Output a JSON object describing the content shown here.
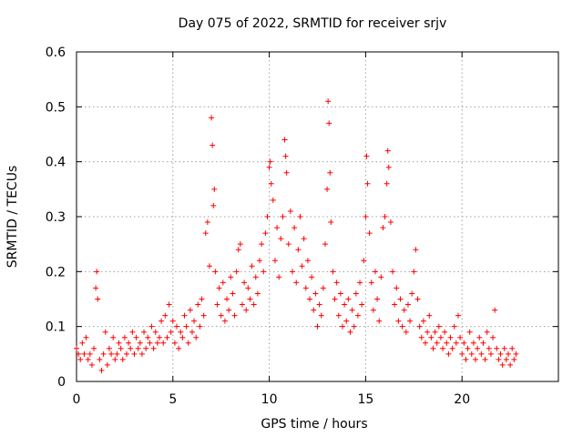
{
  "chart_data": {
    "type": "scatter",
    "title": "Day 075 of 2022, SRMTID for receiver srjv",
    "xlabel": "GPS time / hours",
    "ylabel": "SRMTID / TECUs",
    "xlim": [
      0,
      25
    ],
    "ylim": [
      0,
      0.6
    ],
    "xticks": [
      0,
      5,
      10,
      15,
      20
    ],
    "xtick_labels": [
      "0",
      "5",
      "10",
      "15",
      "20"
    ],
    "yticks": [
      0,
      0.1,
      0.2,
      0.3,
      0.4,
      0.5,
      0.6
    ],
    "ytick_labels": [
      "0",
      "0.1",
      "0.2",
      "0.3",
      "0.4",
      "0.5",
      "0.6"
    ],
    "grid": true,
    "marker": "+",
    "color": "#ff0000",
    "series": [
      {
        "name": "SRMTID",
        "points": [
          [
            0.0,
            0.06
          ],
          [
            0.1,
            0.05
          ],
          [
            0.2,
            0.04
          ],
          [
            0.3,
            0.07
          ],
          [
            0.4,
            0.05
          ],
          [
            0.5,
            0.08
          ],
          [
            0.6,
            0.04
          ],
          [
            0.7,
            0.05
          ],
          [
            0.8,
            0.03
          ],
          [
            0.9,
            0.06
          ],
          [
            1.0,
            0.17
          ],
          [
            1.05,
            0.2
          ],
          [
            1.1,
            0.15
          ],
          [
            1.2,
            0.04
          ],
          [
            1.3,
            0.02
          ],
          [
            1.4,
            0.05
          ],
          [
            1.5,
            0.09
          ],
          [
            1.6,
            0.03
          ],
          [
            1.7,
            0.06
          ],
          [
            1.8,
            0.05
          ],
          [
            1.9,
            0.08
          ],
          [
            2.0,
            0.04
          ],
          [
            2.1,
            0.05
          ],
          [
            2.2,
            0.07
          ],
          [
            2.3,
            0.06
          ],
          [
            2.4,
            0.04
          ],
          [
            2.5,
            0.08
          ],
          [
            2.6,
            0.05
          ],
          [
            2.7,
            0.07
          ],
          [
            2.8,
            0.06
          ],
          [
            2.9,
            0.09
          ],
          [
            3.0,
            0.05
          ],
          [
            3.1,
            0.08
          ],
          [
            3.2,
            0.06
          ],
          [
            3.3,
            0.07
          ],
          [
            3.4,
            0.05
          ],
          [
            3.5,
            0.09
          ],
          [
            3.6,
            0.06
          ],
          [
            3.7,
            0.08
          ],
          [
            3.8,
            0.07
          ],
          [
            3.9,
            0.1
          ],
          [
            4.0,
            0.06
          ],
          [
            4.1,
            0.09
          ],
          [
            4.2,
            0.07
          ],
          [
            4.3,
            0.08
          ],
          [
            4.4,
            0.11
          ],
          [
            4.5,
            0.07
          ],
          [
            4.6,
            0.12
          ],
          [
            4.7,
            0.08
          ],
          [
            4.8,
            0.14
          ],
          [
            4.9,
            0.09
          ],
          [
            5.0,
            0.11
          ],
          [
            5.1,
            0.07
          ],
          [
            5.2,
            0.1
          ],
          [
            5.3,
            0.06
          ],
          [
            5.4,
            0.09
          ],
          [
            5.5,
            0.08
          ],
          [
            5.6,
            0.12
          ],
          [
            5.7,
            0.1
          ],
          [
            5.8,
            0.07
          ],
          [
            5.9,
            0.13
          ],
          [
            6.0,
            0.09
          ],
          [
            6.1,
            0.11
          ],
          [
            6.2,
            0.08
          ],
          [
            6.3,
            0.14
          ],
          [
            6.4,
            0.1
          ],
          [
            6.5,
            0.15
          ],
          [
            6.6,
            0.12
          ],
          [
            6.7,
            0.27
          ],
          [
            6.8,
            0.29
          ],
          [
            6.9,
            0.21
          ],
          [
            7.0,
            0.48
          ],
          [
            7.05,
            0.43
          ],
          [
            7.1,
            0.32
          ],
          [
            7.15,
            0.35
          ],
          [
            7.2,
            0.2
          ],
          [
            7.3,
            0.14
          ],
          [
            7.4,
            0.17
          ],
          [
            7.5,
            0.12
          ],
          [
            7.6,
            0.18
          ],
          [
            7.7,
            0.11
          ],
          [
            7.8,
            0.15
          ],
          [
            7.9,
            0.13
          ],
          [
            8.0,
            0.19
          ],
          [
            8.1,
            0.16
          ],
          [
            8.2,
            0.12
          ],
          [
            8.3,
            0.2
          ],
          [
            8.4,
            0.24
          ],
          [
            8.5,
            0.25
          ],
          [
            8.6,
            0.14
          ],
          [
            8.7,
            0.18
          ],
          [
            8.8,
            0.13
          ],
          [
            8.9,
            0.17
          ],
          [
            9.0,
            0.15
          ],
          [
            9.1,
            0.21
          ],
          [
            9.2,
            0.14
          ],
          [
            9.3,
            0.19
          ],
          [
            9.4,
            0.16
          ],
          [
            9.5,
            0.22
          ],
          [
            9.6,
            0.25
          ],
          [
            9.7,
            0.2
          ],
          [
            9.8,
            0.27
          ],
          [
            9.9,
            0.3
          ],
          [
            10.0,
            0.39
          ],
          [
            10.05,
            0.4
          ],
          [
            10.1,
            0.36
          ],
          [
            10.2,
            0.33
          ],
          [
            10.3,
            0.22
          ],
          [
            10.4,
            0.28
          ],
          [
            10.5,
            0.19
          ],
          [
            10.6,
            0.26
          ],
          [
            10.7,
            0.3
          ],
          [
            10.8,
            0.44
          ],
          [
            10.85,
            0.41
          ],
          [
            10.9,
            0.38
          ],
          [
            11.0,
            0.25
          ],
          [
            11.1,
            0.31
          ],
          [
            11.2,
            0.2
          ],
          [
            11.3,
            0.28
          ],
          [
            11.4,
            0.18
          ],
          [
            11.5,
            0.24
          ],
          [
            11.6,
            0.3
          ],
          [
            11.7,
            0.21
          ],
          [
            11.8,
            0.26
          ],
          [
            11.9,
            0.17
          ],
          [
            12.0,
            0.22
          ],
          [
            12.1,
            0.15
          ],
          [
            12.2,
            0.19
          ],
          [
            12.3,
            0.13
          ],
          [
            12.4,
            0.16
          ],
          [
            12.5,
            0.1
          ],
          [
            12.6,
            0.14
          ],
          [
            12.7,
            0.12
          ],
          [
            12.8,
            0.17
          ],
          [
            12.9,
            0.25
          ],
          [
            13.0,
            0.35
          ],
          [
            13.05,
            0.51
          ],
          [
            13.1,
            0.47
          ],
          [
            13.15,
            0.38
          ],
          [
            13.2,
            0.29
          ],
          [
            13.3,
            0.2
          ],
          [
            13.4,
            0.15
          ],
          [
            13.5,
            0.18
          ],
          [
            13.6,
            0.12
          ],
          [
            13.7,
            0.16
          ],
          [
            13.8,
            0.1
          ],
          [
            13.9,
            0.14
          ],
          [
            14.0,
            0.11
          ],
          [
            14.1,
            0.15
          ],
          [
            14.2,
            0.09
          ],
          [
            14.3,
            0.13
          ],
          [
            14.4,
            0.1
          ],
          [
            14.5,
            0.16
          ],
          [
            14.6,
            0.12
          ],
          [
            14.7,
            0.18
          ],
          [
            14.8,
            0.14
          ],
          [
            14.9,
            0.22
          ],
          [
            15.0,
            0.3
          ],
          [
            15.05,
            0.41
          ],
          [
            15.1,
            0.36
          ],
          [
            15.2,
            0.27
          ],
          [
            15.3,
            0.18
          ],
          [
            15.4,
            0.13
          ],
          [
            15.5,
            0.2
          ],
          [
            15.6,
            0.15
          ],
          [
            15.7,
            0.11
          ],
          [
            15.8,
            0.19
          ],
          [
            15.9,
            0.28
          ],
          [
            16.0,
            0.3
          ],
          [
            16.1,
            0.36
          ],
          [
            16.15,
            0.42
          ],
          [
            16.2,
            0.39
          ],
          [
            16.3,
            0.29
          ],
          [
            16.4,
            0.2
          ],
          [
            16.5,
            0.14
          ],
          [
            16.6,
            0.17
          ],
          [
            16.7,
            0.11
          ],
          [
            16.8,
            0.15
          ],
          [
            16.9,
            0.1
          ],
          [
            17.0,
            0.13
          ],
          [
            17.1,
            0.09
          ],
          [
            17.2,
            0.14
          ],
          [
            17.3,
            0.11
          ],
          [
            17.4,
            0.16
          ],
          [
            17.5,
            0.2
          ],
          [
            17.6,
            0.24
          ],
          [
            17.7,
            0.15
          ],
          [
            17.8,
            0.1
          ],
          [
            17.9,
            0.08
          ],
          [
            18.0,
            0.11
          ],
          [
            18.1,
            0.07
          ],
          [
            18.2,
            0.09
          ],
          [
            18.3,
            0.12
          ],
          [
            18.4,
            0.08
          ],
          [
            18.5,
            0.06
          ],
          [
            18.6,
            0.09
          ],
          [
            18.7,
            0.07
          ],
          [
            18.8,
            0.1
          ],
          [
            18.9,
            0.08
          ],
          [
            19.0,
            0.06
          ],
          [
            19.1,
            0.09
          ],
          [
            19.2,
            0.07
          ],
          [
            19.3,
            0.05
          ],
          [
            19.4,
            0.08
          ],
          [
            19.5,
            0.06
          ],
          [
            19.6,
            0.1
          ],
          [
            19.7,
            0.07
          ],
          [
            19.8,
            0.12
          ],
          [
            19.9,
            0.08
          ],
          [
            20.0,
            0.05
          ],
          [
            20.1,
            0.07
          ],
          [
            20.2,
            0.04
          ],
          [
            20.3,
            0.06
          ],
          [
            20.4,
            0.09
          ],
          [
            20.5,
            0.05
          ],
          [
            20.6,
            0.07
          ],
          [
            20.7,
            0.04
          ],
          [
            20.8,
            0.06
          ],
          [
            20.9,
            0.08
          ],
          [
            21.0,
            0.05
          ],
          [
            21.1,
            0.07
          ],
          [
            21.2,
            0.04
          ],
          [
            21.3,
            0.09
          ],
          [
            21.4,
            0.06
          ],
          [
            21.5,
            0.05
          ],
          [
            21.6,
            0.08
          ],
          [
            21.7,
            0.13
          ],
          [
            21.8,
            0.06
          ],
          [
            21.9,
            0.04
          ],
          [
            22.0,
            0.05
          ],
          [
            22.1,
            0.03
          ],
          [
            22.2,
            0.06
          ],
          [
            22.3,
            0.04
          ],
          [
            22.4,
            0.05
          ],
          [
            22.5,
            0.03
          ],
          [
            22.6,
            0.06
          ],
          [
            22.7,
            0.04
          ],
          [
            22.8,
            0.05
          ]
        ]
      }
    ]
  }
}
